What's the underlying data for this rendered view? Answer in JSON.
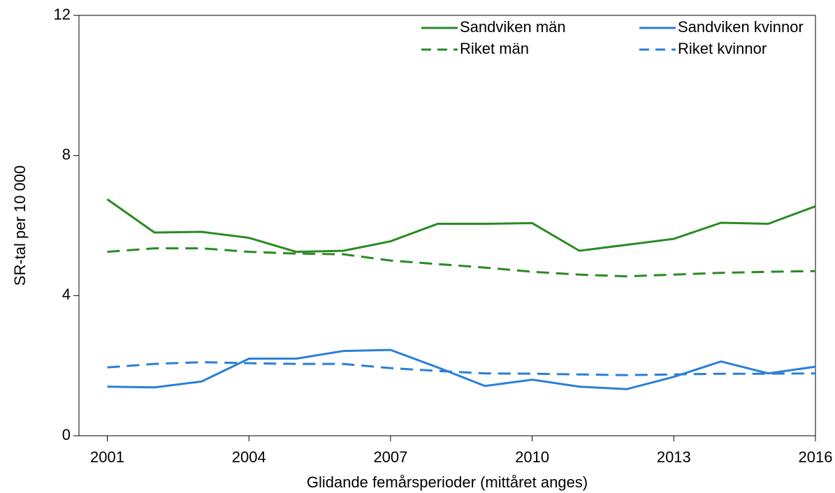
{
  "chart_data": {
    "type": "line",
    "x_label": "Glidande femårsperioder (mittåret anges)",
    "y_label": "SR-tal per 10 000",
    "x": [
      2001,
      2002,
      2003,
      2004,
      2005,
      2006,
      2007,
      2008,
      2009,
      2010,
      2011,
      2012,
      2013,
      2014,
      2015,
      2016
    ],
    "xlim": [
      2000.4,
      2016
    ],
    "xticks": [
      2001,
      2004,
      2007,
      2010,
      2013,
      2016
    ],
    "ylim": [
      0,
      12
    ],
    "yticks": [
      0,
      4,
      8,
      12
    ],
    "legend": "top-right",
    "series": [
      {
        "name": "Sandviken män",
        "color": "#2a8a22",
        "style": "solid",
        "values": [
          6.75,
          5.8,
          5.82,
          5.65,
          5.25,
          5.28,
          5.55,
          6.05,
          6.05,
          6.07,
          5.28,
          5.45,
          5.62,
          6.08,
          6.05,
          6.55
        ]
      },
      {
        "name": "Riket män",
        "color": "#2a8a22",
        "style": "dashed",
        "values": [
          5.25,
          5.35,
          5.35,
          5.25,
          5.2,
          5.18,
          5.0,
          4.9,
          4.8,
          4.68,
          4.6,
          4.55,
          4.6,
          4.65,
          4.68,
          4.7
        ]
      },
      {
        "name": "Sandviken kvinnor",
        "color": "#2a7fd8",
        "style": "solid",
        "values": [
          1.4,
          1.38,
          1.55,
          2.2,
          2.2,
          2.42,
          2.45,
          1.95,
          1.42,
          1.6,
          1.4,
          1.33,
          1.68,
          2.12,
          1.78,
          1.97
        ]
      },
      {
        "name": "Riket kvinnor",
        "color": "#2a7fd8",
        "style": "dashed",
        "values": [
          1.95,
          2.05,
          2.1,
          2.07,
          2.05,
          2.05,
          1.93,
          1.85,
          1.78,
          1.77,
          1.75,
          1.73,
          1.75,
          1.77,
          1.77,
          1.78
        ]
      }
    ]
  }
}
